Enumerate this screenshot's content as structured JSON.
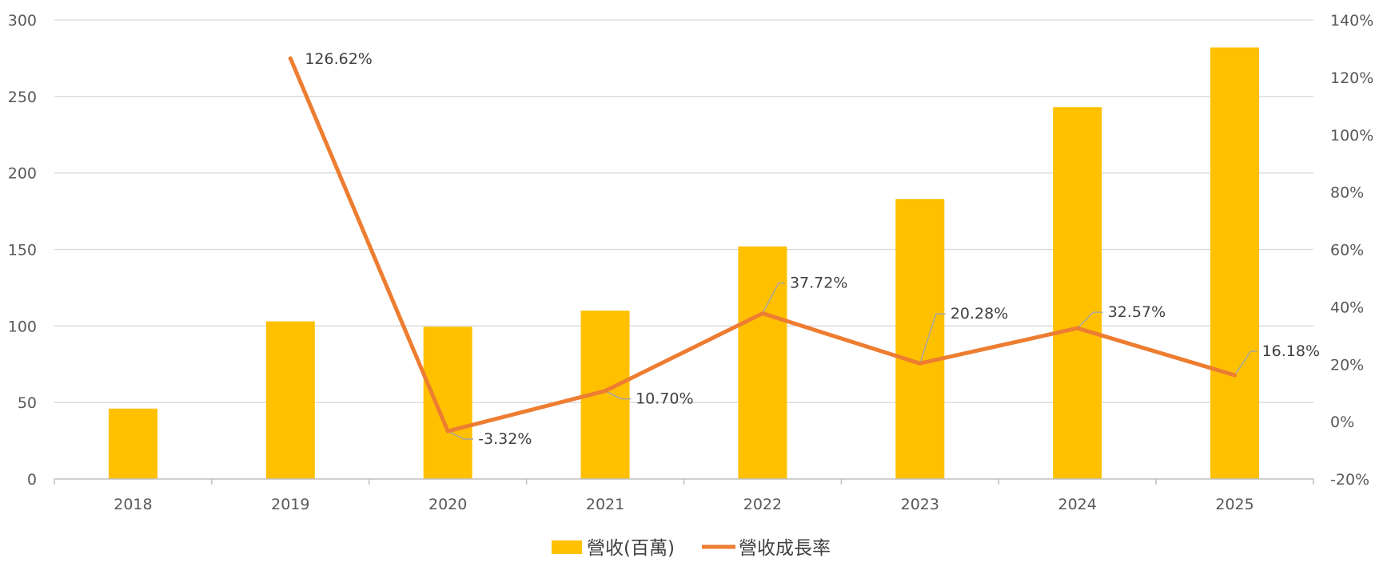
{
  "chart_data": {
    "type": "bar+line",
    "categories": [
      "2018",
      "2019",
      "2020",
      "2021",
      "2022",
      "2023",
      "2024",
      "2025"
    ],
    "series": [
      {
        "name": "營收(百萬)",
        "type": "bar",
        "axis": "left",
        "color": "#FFC000",
        "values": [
          46,
          103,
          99.5,
          110,
          152,
          183,
          243,
          282
        ]
      },
      {
        "name": "營收成長率",
        "type": "line",
        "axis": "right",
        "color": "#ED7D31",
        "values": [
          null,
          126.62,
          -3.32,
          10.7,
          37.72,
          20.28,
          32.57,
          16.18
        ],
        "labels": [
          "",
          "126.62%",
          "-3.32%",
          "10.70%",
          "37.72%",
          "20.28%",
          "32.57%",
          "16.18%"
        ]
      }
    ],
    "y_left": {
      "ylim": [
        0,
        300
      ],
      "ticks": [
        0,
        50,
        100,
        150,
        200,
        250,
        300
      ],
      "tick_labels": [
        "0",
        "50",
        "100",
        "150",
        "200",
        "250",
        "300"
      ]
    },
    "y_right": {
      "ylim": [
        -20,
        140
      ],
      "ticks": [
        -20,
        0,
        20,
        40,
        60,
        80,
        100,
        120,
        140
      ],
      "tick_labels": [
        "-20%",
        "0%",
        "20%",
        "40%",
        "60%",
        "80%",
        "100%",
        "120%",
        "140%"
      ]
    },
    "title": "",
    "xlabel": "",
    "ylabel": "",
    "grid": true,
    "legend_position": "bottom-center"
  }
}
